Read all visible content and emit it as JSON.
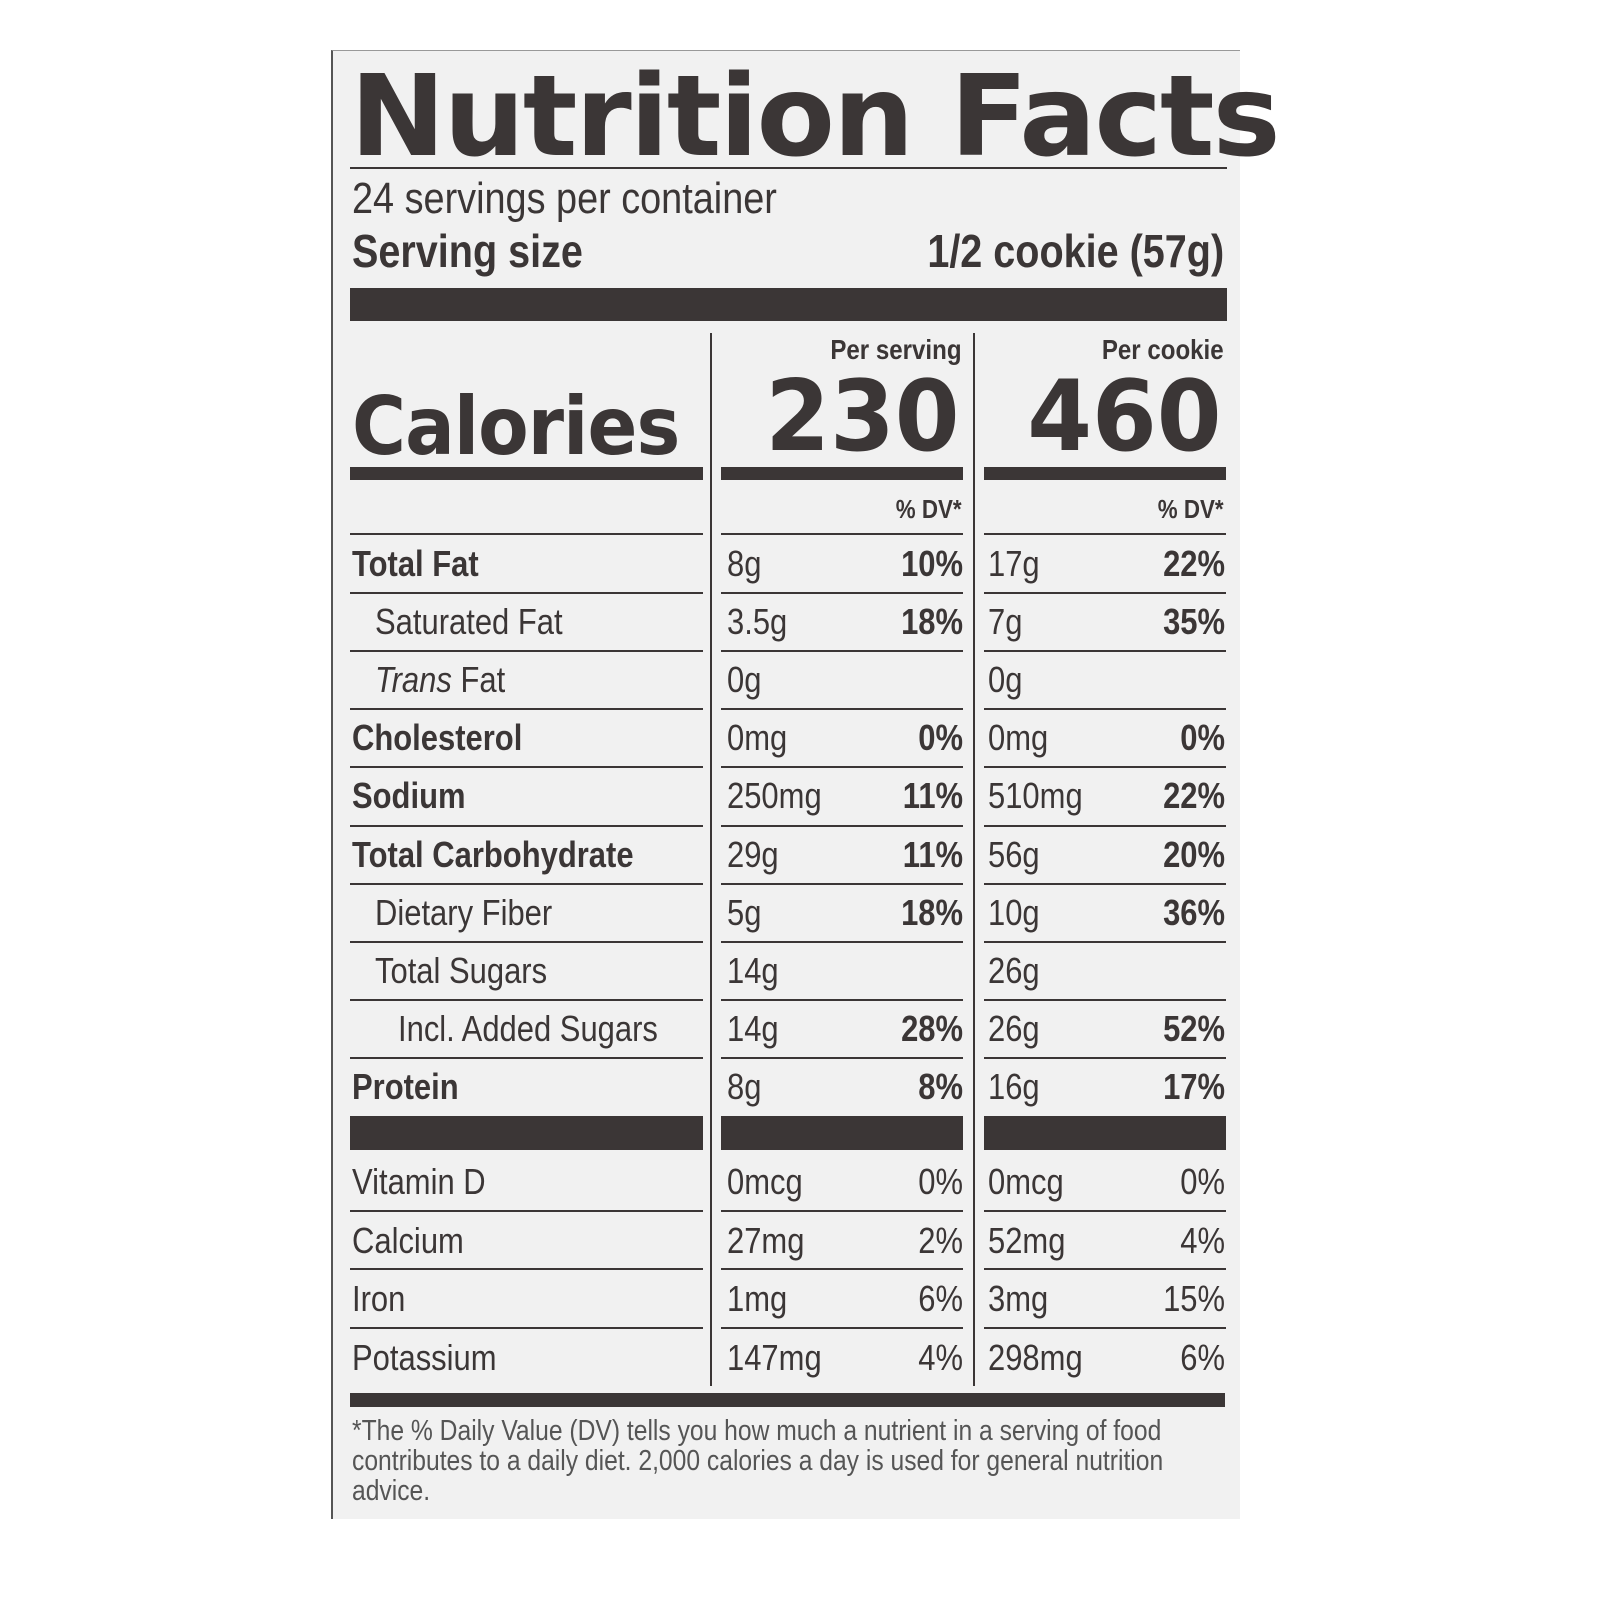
{
  "title": "Nutrition Facts",
  "servings_per_container": "24 servings per container",
  "serving_size_label": "Serving size",
  "serving_size_value": "1/2 cookie (57g)",
  "calories_label": "Calories",
  "columns": [
    {
      "header": "Per serving",
      "calories": "230",
      "dv_header": "% DV*"
    },
    {
      "header": "Per cookie",
      "calories": "460",
      "dv_header": "% DV*"
    }
  ],
  "nutrients": [
    {
      "label": "Total Fat",
      "bold": true,
      "indent": 0,
      "values": [
        [
          "8g",
          "10%"
        ],
        [
          "17g",
          "22%"
        ]
      ]
    },
    {
      "label": "Saturated Fat",
      "bold": false,
      "indent": 1,
      "values": [
        [
          "3.5g",
          "18%"
        ],
        [
          "7g",
          "35%"
        ]
      ]
    },
    {
      "label_italic": "Trans",
      "label": " Fat",
      "bold": false,
      "indent": 1,
      "values": [
        [
          "0g",
          ""
        ],
        [
          "0g",
          ""
        ]
      ]
    },
    {
      "label": "Cholesterol",
      "bold": true,
      "indent": 0,
      "values": [
        [
          "0mg",
          "0%"
        ],
        [
          "0mg",
          "0%"
        ]
      ]
    },
    {
      "label": "Sodium",
      "bold": true,
      "indent": 0,
      "values": [
        [
          "250mg",
          "11%"
        ],
        [
          "510mg",
          "22%"
        ]
      ]
    },
    {
      "label": "Total Carbohydrate",
      "bold": true,
      "indent": 0,
      "values": [
        [
          "29g",
          "11%"
        ],
        [
          "56g",
          "20%"
        ]
      ]
    },
    {
      "label": "Dietary Fiber",
      "bold": false,
      "indent": 1,
      "values": [
        [
          "5g",
          "18%"
        ],
        [
          "10g",
          "36%"
        ]
      ]
    },
    {
      "label": "Total Sugars",
      "bold": false,
      "indent": 1,
      "values": [
        [
          "14g",
          ""
        ],
        [
          "26g",
          ""
        ]
      ]
    },
    {
      "label": "Incl. Added Sugars",
      "bold": false,
      "indent": 2,
      "values": [
        [
          "14g",
          "28%"
        ],
        [
          "26g",
          "52%"
        ]
      ]
    },
    {
      "label": "Protein",
      "bold": true,
      "indent": 0,
      "values": [
        [
          "8g",
          "8%"
        ],
        [
          "16g",
          "17%"
        ]
      ]
    }
  ],
  "vitamins": [
    {
      "label": "Vitamin D",
      "values": [
        [
          "0mcg",
          "0%"
        ],
        [
          "0mcg",
          "0%"
        ]
      ]
    },
    {
      "label": "Calcium",
      "values": [
        [
          "27mg",
          "2%"
        ],
        [
          "52mg",
          "4%"
        ]
      ]
    },
    {
      "label": "Iron",
      "values": [
        [
          "1mg",
          "6%"
        ],
        [
          "3mg",
          "15%"
        ]
      ]
    },
    {
      "label": "Potassium",
      "values": [
        [
          "147mg",
          "4%"
        ],
        [
          "298mg",
          "6%"
        ]
      ]
    }
  ],
  "footnote": "*The % Daily Value (DV) tells you how much a nutrient in a serving of food contributes to a daily diet. 2,000 calories a day is used for general nutrition advice.",
  "colors": {
    "ink": "#3b3636",
    "panel": "#f1f1f1"
  }
}
